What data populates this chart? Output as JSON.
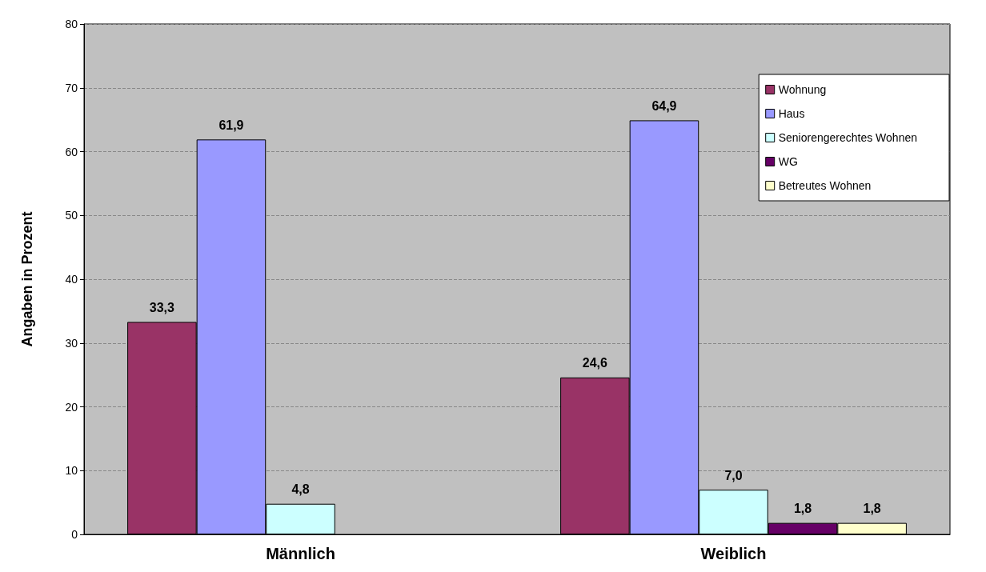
{
  "chart_data": {
    "type": "bar",
    "ylabel": "Angaben in Prozent",
    "categories": [
      "Männlich",
      "Weiblich"
    ],
    "series": [
      {
        "name": "Wohnung",
        "color": "#993366",
        "values": [
          33.3,
          24.6
        ],
        "value_labels": [
          "33,3",
          "24,6"
        ]
      },
      {
        "name": "Haus",
        "color": "#9999ff",
        "values": [
          61.9,
          64.9
        ],
        "value_labels": [
          "61,9",
          "64,9"
        ]
      },
      {
        "name": "Seniorengerechtes Wohnen",
        "color": "#ccffff",
        "values": [
          4.8,
          7.0
        ],
        "value_labels": [
          "4,8",
          "7,0"
        ]
      },
      {
        "name": "WG",
        "color": "#660066",
        "values": [
          null,
          1.8
        ],
        "value_labels": [
          null,
          "1,8"
        ]
      },
      {
        "name": "Betreutes Wohnen",
        "color": "#ffffcc",
        "values": [
          null,
          1.8
        ],
        "value_labels": [
          null,
          "1,8"
        ]
      }
    ],
    "ylim": [
      0,
      80
    ],
    "yticks": [
      0,
      10,
      20,
      30,
      40,
      50,
      60,
      70,
      80
    ],
    "grid": "y",
    "legend": "top right"
  }
}
